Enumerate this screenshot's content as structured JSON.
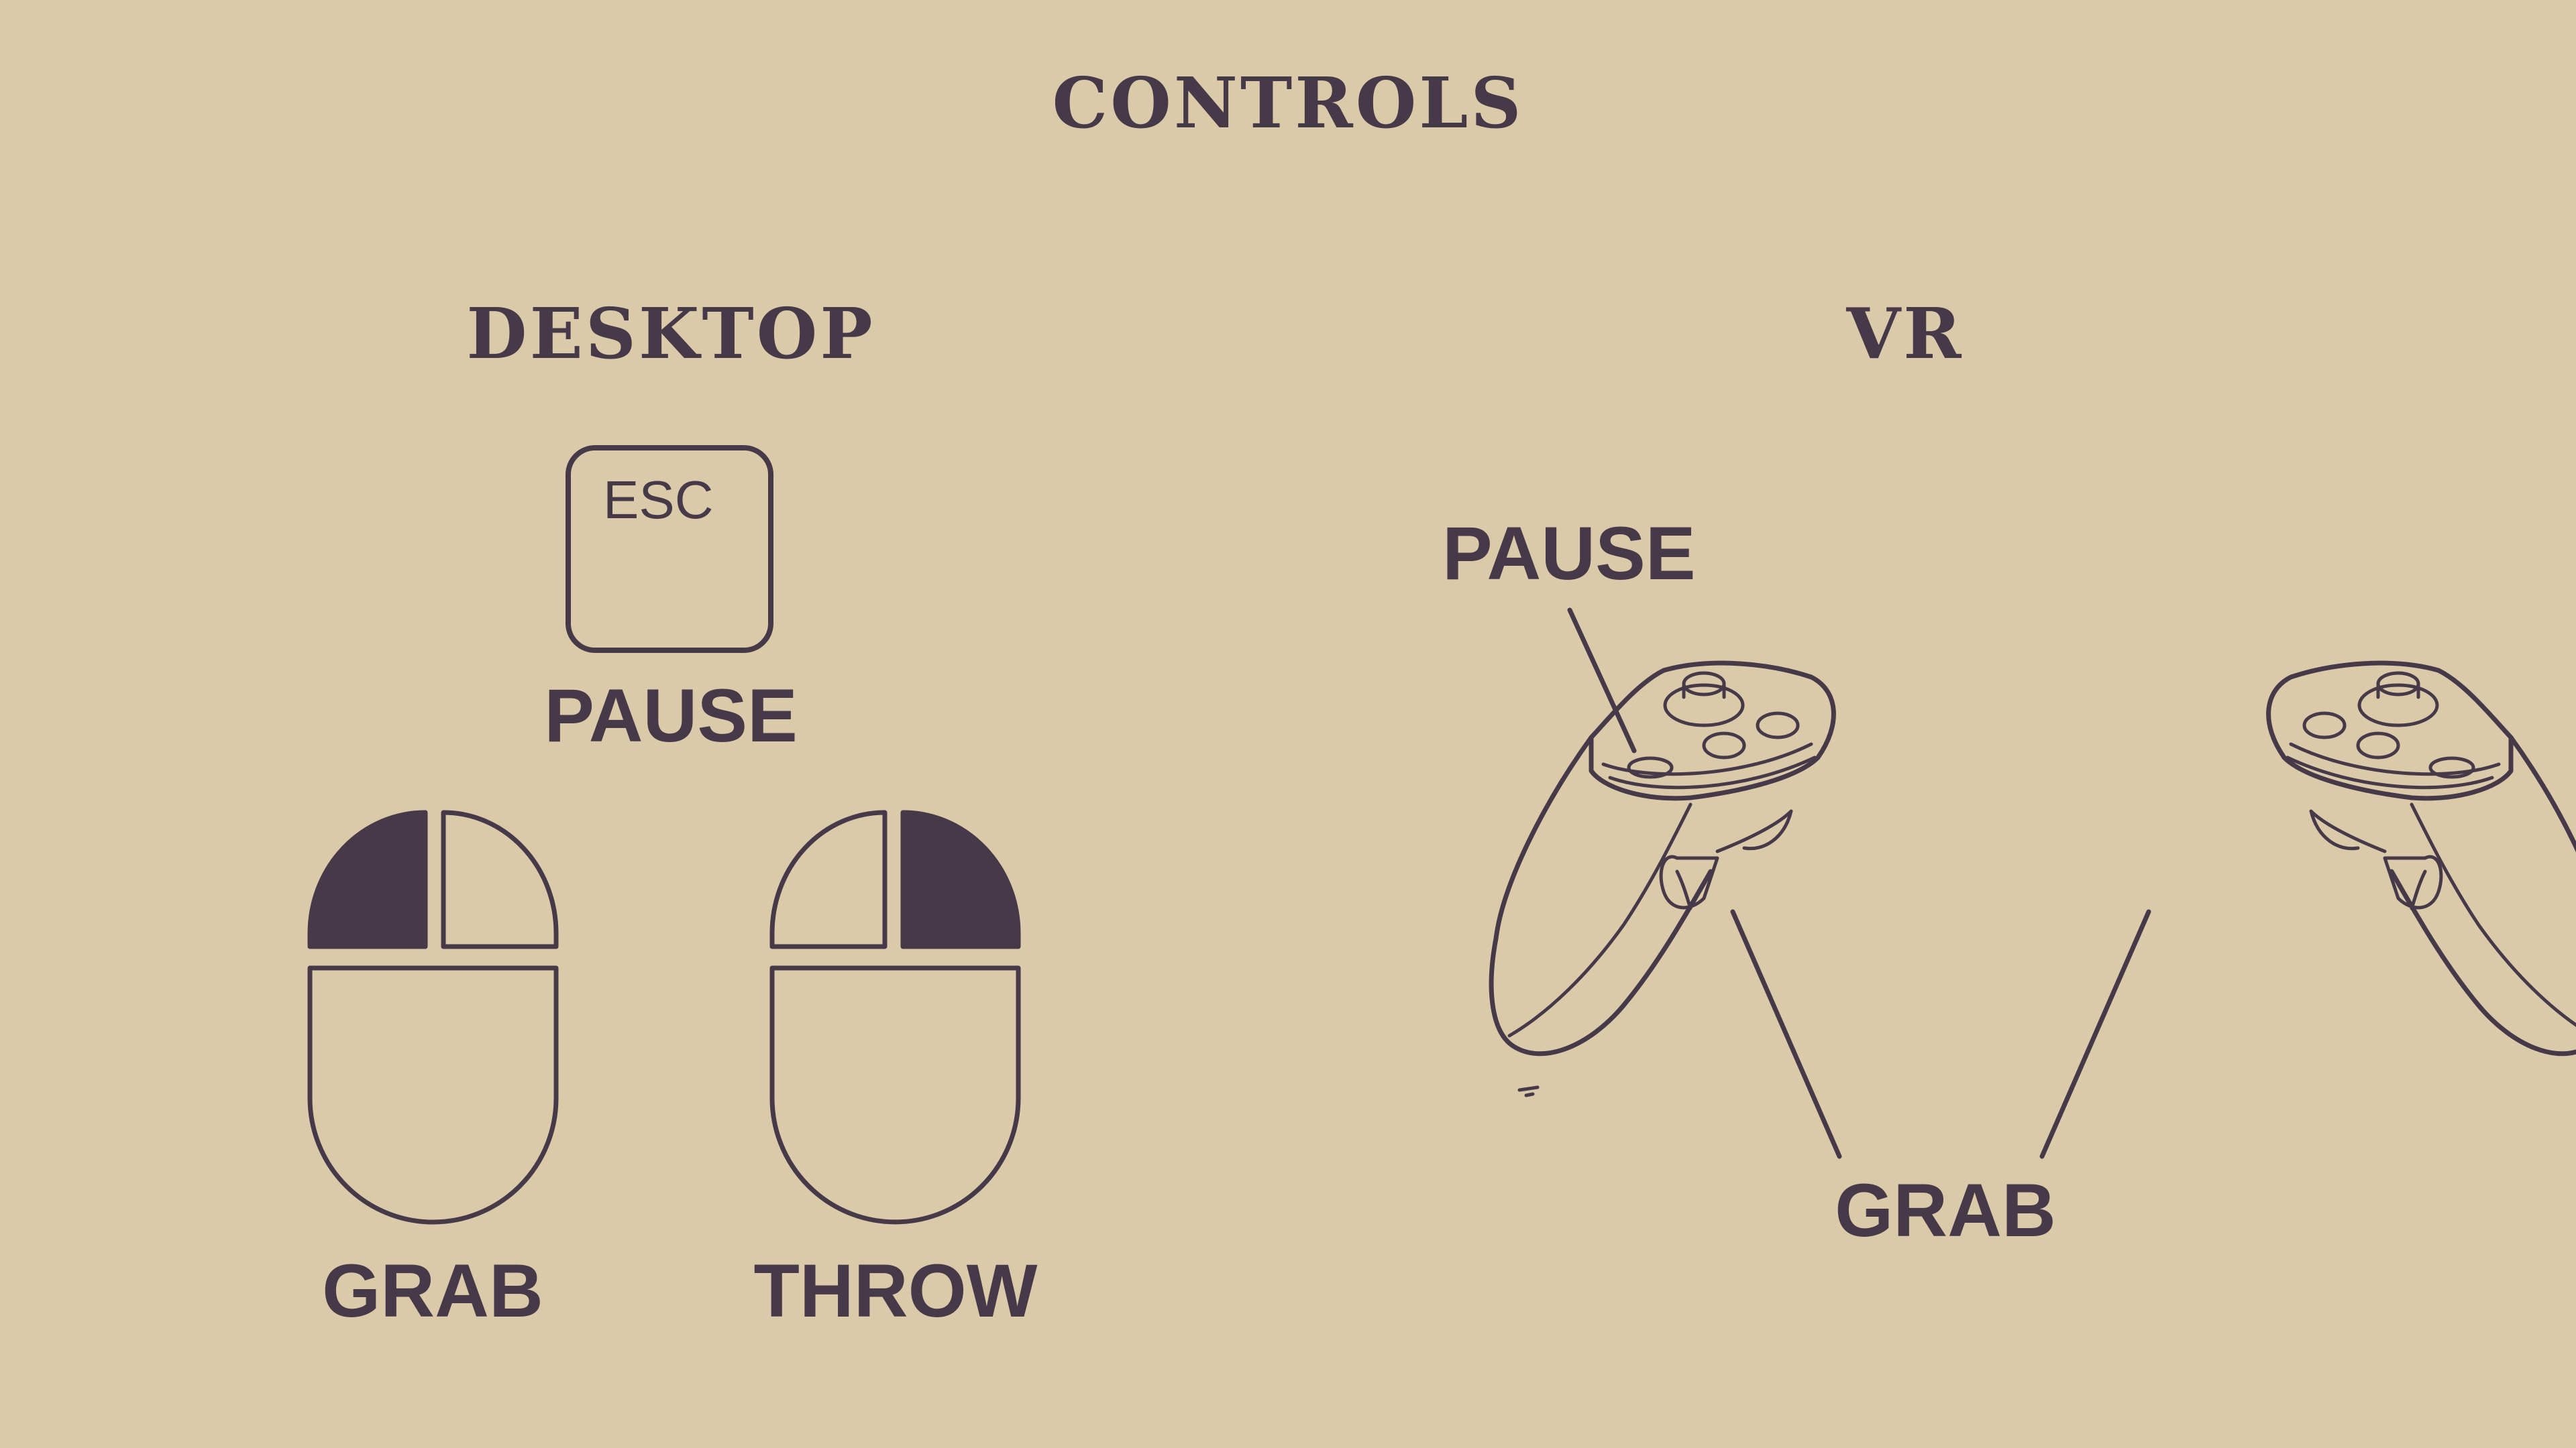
{
  "title": "CONTROLS",
  "desktop": {
    "heading": "DESKTOP",
    "esc_key": "ESC",
    "pause_label": "PAUSE",
    "grab_label": "GRAB",
    "throw_label": "THROW"
  },
  "vr": {
    "heading": "VR",
    "pause_label": "PAUSE",
    "grab_label": "GRAB"
  },
  "colors": {
    "background": "#dbcaaa",
    "ink": "#463a49"
  },
  "icons": {
    "esc_key": "esc-key-icon",
    "left_click_mouse": "mouse-left-click-icon",
    "right_click_mouse": "mouse-right-click-icon",
    "left_vr_controller": "vr-controller-left-icon",
    "right_vr_controller": "vr-controller-right-icon"
  }
}
